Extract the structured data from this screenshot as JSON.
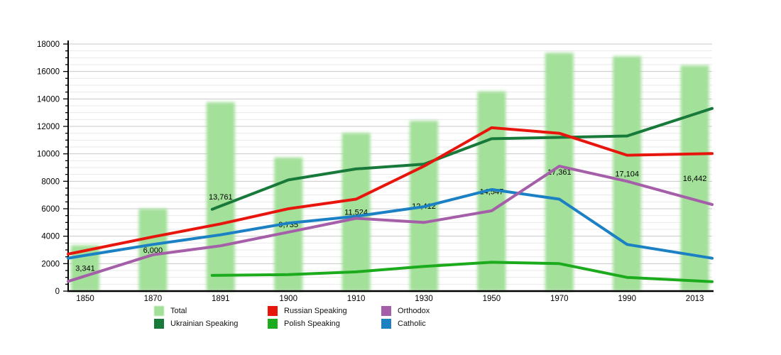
{
  "chart_data": {
    "type": "bar+line",
    "categories": [
      "1850",
      "1870",
      "1891",
      "1900",
      "1910",
      "1930",
      "1950",
      "1970",
      "1990",
      "2013"
    ],
    "y_axis": {
      "min": 0,
      "max": 18000,
      "major_step": 2000,
      "minor_step": 500,
      "tick_labels": [
        "0",
        "2000",
        "4000",
        "6000",
        "8000",
        "10000",
        "12000",
        "14000",
        "16000",
        "18000"
      ]
    },
    "grid": "on",
    "bar_series": {
      "name": "Total",
      "color": "#a3e09a",
      "values": [
        3341,
        6000,
        13761,
        9735,
        11524,
        12412,
        14547,
        17361,
        17104,
        16442
      ],
      "labels": [
        "3,341",
        "6,000",
        "13,761",
        "9,735",
        "11,524",
        "12,412",
        "14,547",
        "17,361",
        "17,104",
        "16,442"
      ]
    },
    "line_series": [
      {
        "name": "Ukrainian Speaking",
        "color": "#17793a",
        "values": [
          null,
          null,
          6200,
          8100,
          8900,
          9250,
          11100,
          11200,
          11300,
          12900
        ]
      },
      {
        "name": "Catholic",
        "color": "#1b80c4",
        "values": [
          2600,
          3400,
          4100,
          4950,
          5450,
          6150,
          7400,
          6700,
          3400,
          2600
        ]
      },
      {
        "name": "Orthodox",
        "color": "#a55fa8",
        "values": [
          1100,
          2650,
          3300,
          4300,
          5300,
          5000,
          5850,
          9100,
          8000,
          6650
        ]
      },
      {
        "name": "Polish Speaking",
        "color": "#1cab1c",
        "values": [
          null,
          null,
          1150,
          1200,
          1400,
          1800,
          2100,
          2000,
          1000,
          750
        ]
      },
      {
        "name": "Russian Speaking",
        "color": "#e8150d",
        "values": [
          2950,
          3950,
          4900,
          6000,
          6700,
          9100,
          11900,
          11500,
          9900,
          10000
        ]
      }
    ],
    "legend": {
      "position": "bottom",
      "columns": [
        [
          {
            "label": "Total",
            "color": "#a3e09a",
            "kind": "bar"
          },
          {
            "label": "Ukrainian Speaking",
            "color": "#17793a",
            "kind": "line"
          }
        ],
        [
          {
            "label": "Russian Speaking",
            "color": "#e8150d",
            "kind": "line"
          },
          {
            "label": "Polish Speaking",
            "color": "#1cab1c",
            "kind": "line"
          }
        ],
        [
          {
            "label": "Orthodox",
            "color": "#a55fa8",
            "kind": "line"
          },
          {
            "label": "Catholic",
            "color": "#1b80c4",
            "kind": "line"
          }
        ]
      ]
    },
    "text_color": "#000000",
    "gridline_major_color": "#c9c9c9",
    "gridline_minor_color": "#eaeaea",
    "axis_color": "#000000"
  }
}
